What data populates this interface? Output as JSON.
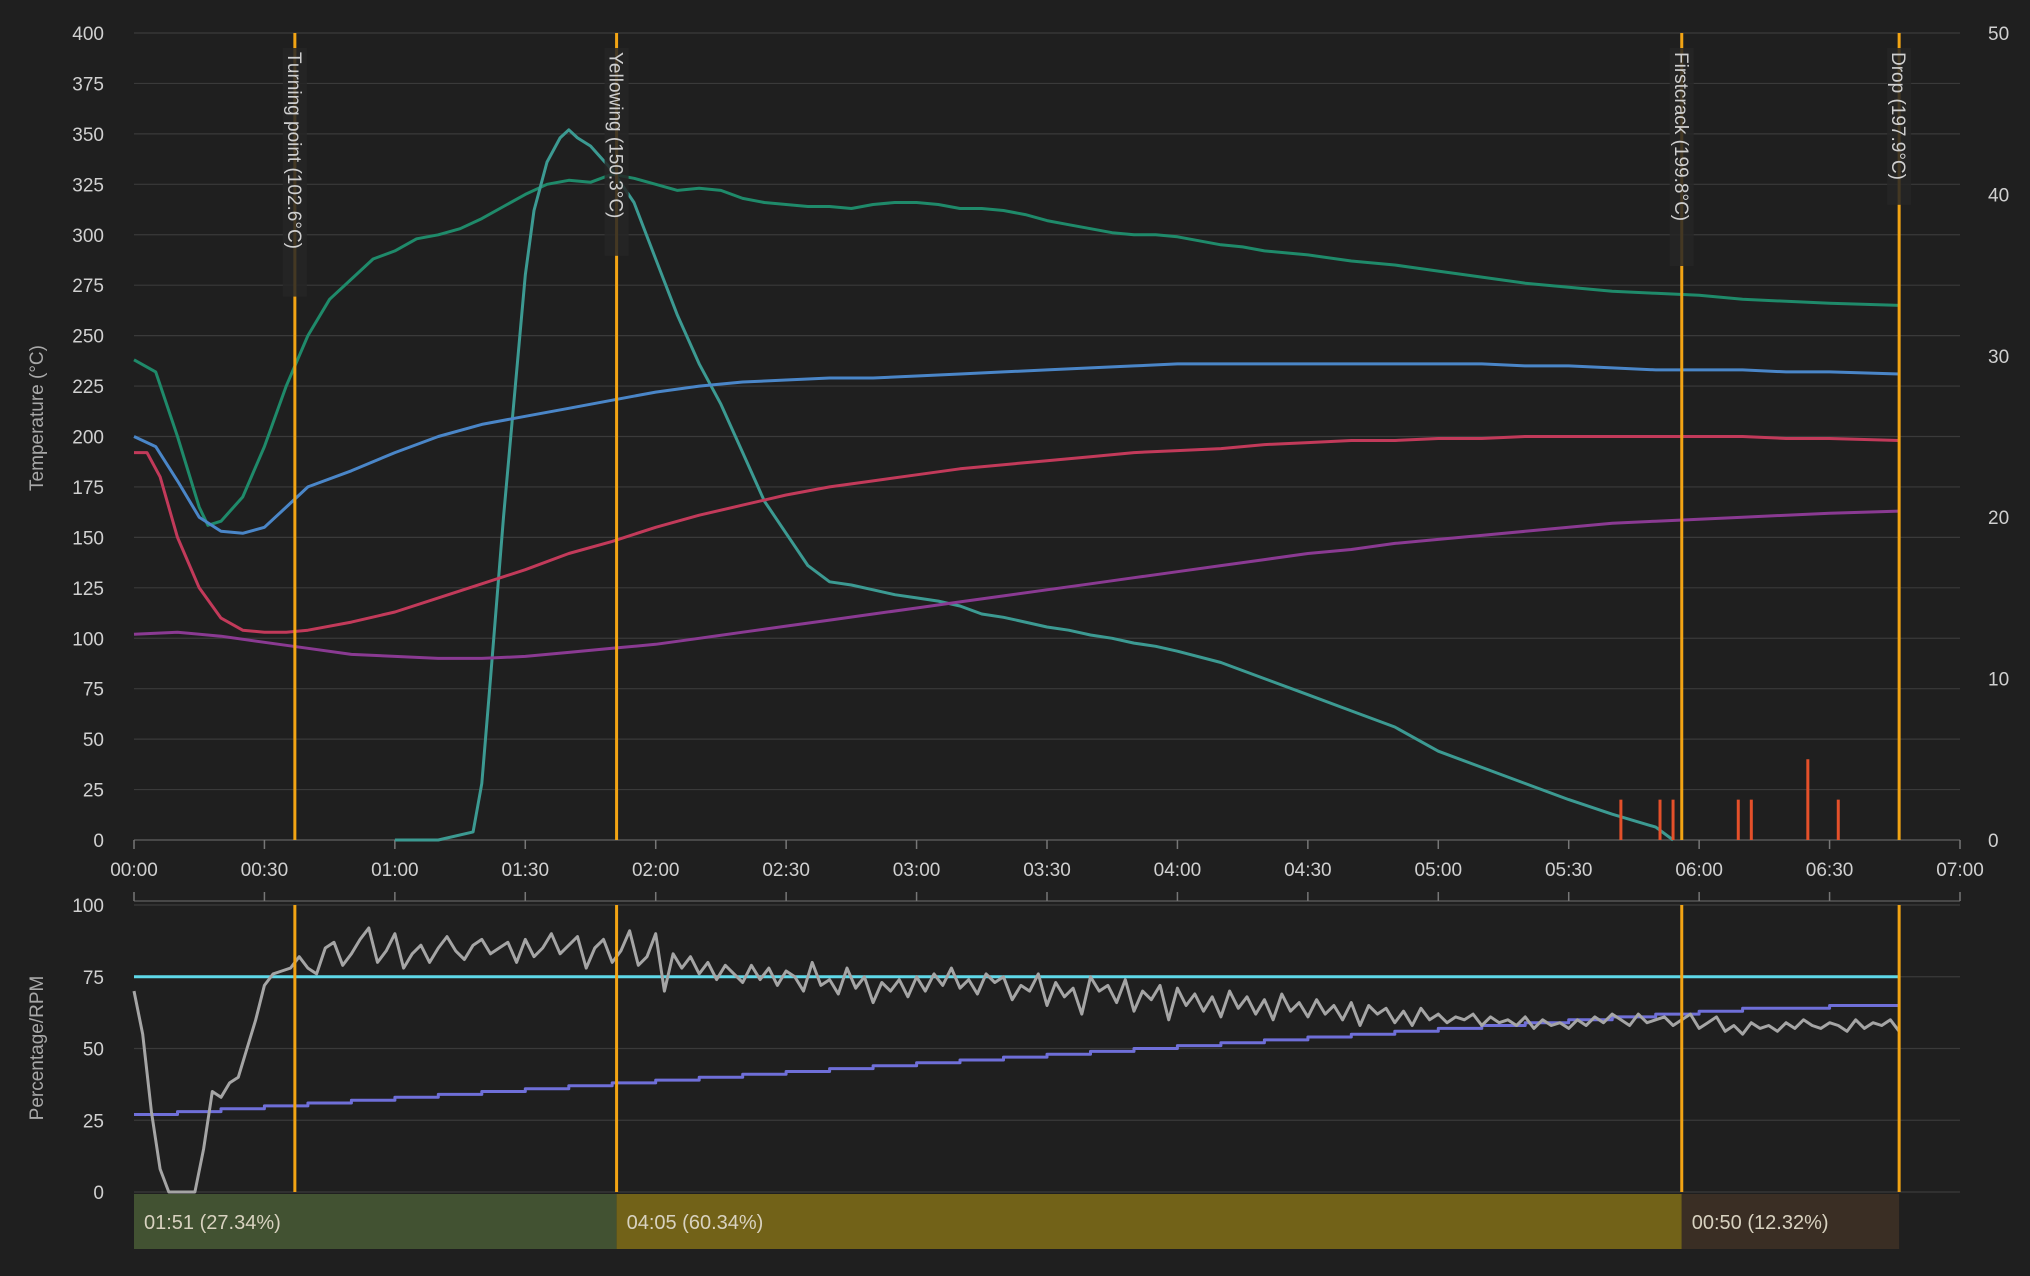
{
  "chart_data": {
    "type": "line",
    "x_ticks": [
      "00:00",
      "00:30",
      "01:00",
      "01:30",
      "02:00",
      "02:30",
      "03:00",
      "03:30",
      "04:00",
      "04:30",
      "05:00",
      "05:30",
      "06:00",
      "06:30",
      "07:00"
    ],
    "x_range_seconds": [
      0,
      420
    ],
    "top_panel": {
      "ylabel": "Temperature (°C)",
      "ylim": [
        0,
        400
      ],
      "y_ticks": [
        "0",
        "25",
        "50",
        "75",
        "100",
        "125",
        "150",
        "175",
        "200",
        "225",
        "250",
        "275",
        "300",
        "325",
        "350",
        "375",
        "400"
      ],
      "y2lim": [
        0,
        50
      ],
      "y2_ticks": [
        "0",
        "10",
        "20",
        "30",
        "40",
        "50"
      ],
      "grid": true,
      "series": [
        {
          "color": "#1f8a6a",
          "axis": "left",
          "x": [
            0,
            5,
            10,
            15,
            17,
            20,
            25,
            30,
            35,
            40,
            45,
            50,
            55,
            60,
            65,
            70,
            75,
            80,
            85,
            90,
            95,
            100,
            105,
            110,
            115,
            120,
            125,
            130,
            135,
            140,
            145,
            150,
            155,
            160,
            165,
            170,
            175,
            180,
            185,
            190,
            195,
            200,
            205,
            210,
            215,
            220,
            225,
            230,
            235,
            240,
            245,
            250,
            255,
            260,
            270,
            280,
            290,
            300,
            310,
            320,
            330,
            340,
            350,
            360,
            370,
            380,
            390,
            406
          ],
          "y": [
            238,
            232,
            200,
            165,
            156,
            158,
            170,
            195,
            225,
            250,
            268,
            278,
            288,
            292,
            298,
            300,
            303,
            308,
            314,
            320,
            325,
            327,
            326,
            330,
            328,
            325,
            322,
            323,
            322,
            318,
            316,
            315,
            314,
            314,
            313,
            315,
            316,
            316,
            315,
            313,
            313,
            312,
            310,
            307,
            305,
            303,
            301,
            300,
            300,
            299,
            297,
            295,
            294,
            292,
            290,
            287,
            285,
            282,
            279,
            276,
            274,
            272,
            271,
            270,
            268,
            267,
            266,
            265
          ]
        },
        {
          "color": "#3c9a92",
          "axis": "right",
          "x": [
            60,
            70,
            78,
            80,
            82,
            85,
            88,
            90,
            92,
            95,
            98,
            100,
            102,
            105,
            110,
            115,
            120,
            125,
            130,
            135,
            140,
            145,
            150,
            155,
            160,
            165,
            170,
            175,
            180,
            185,
            190,
            195,
            200,
            205,
            210,
            215,
            220,
            225,
            230,
            235,
            240,
            250,
            260,
            270,
            280,
            290,
            300,
            310,
            320,
            330,
            340,
            350,
            354
          ],
          "y": [
            0,
            0,
            0.5,
            3.5,
            10,
            20,
            29,
            35,
            39,
            42,
            43.5,
            44,
            43.5,
            43,
            41.5,
            39.5,
            36,
            32.5,
            29.5,
            27,
            24,
            21,
            19,
            17,
            16,
            15.8,
            15.5,
            15.2,
            15,
            14.8,
            14.5,
            14,
            13.8,
            13.5,
            13.2,
            13,
            12.7,
            12.5,
            12.2,
            12,
            11.7,
            11,
            10,
            9,
            8,
            7,
            5.5,
            4.5,
            3.5,
            2.5,
            1.6,
            0.8,
            0
          ]
        },
        {
          "color": "#4a86c8",
          "axis": "left",
          "x": [
            0,
            5,
            10,
            15,
            20,
            25,
            30,
            35,
            40,
            50,
            60,
            70,
            80,
            90,
            100,
            110,
            120,
            130,
            140,
            150,
            160,
            170,
            180,
            190,
            200,
            210,
            220,
            230,
            240,
            250,
            260,
            270,
            280,
            290,
            300,
            310,
            320,
            330,
            340,
            350,
            360,
            370,
            380,
            390,
            406
          ],
          "y": [
            200,
            195,
            178,
            160,
            153,
            152,
            155,
            165,
            175,
            183,
            192,
            200,
            206,
            210,
            214,
            218,
            222,
            225,
            227,
            228,
            229,
            229,
            230,
            231,
            232,
            233,
            234,
            235,
            236,
            236,
            236,
            236,
            236,
            236,
            236,
            236,
            235,
            235,
            234,
            233,
            233,
            233,
            232,
            232,
            231
          ]
        },
        {
          "color": "#c23a5a",
          "axis": "left",
          "x": [
            0,
            3,
            6,
            10,
            15,
            20,
            25,
            30,
            35,
            40,
            50,
            60,
            70,
            80,
            90,
            100,
            110,
            120,
            130,
            140,
            150,
            160,
            170,
            180,
            190,
            200,
            210,
            220,
            230,
            240,
            250,
            260,
            270,
            280,
            290,
            300,
            310,
            320,
            330,
            340,
            350,
            360,
            370,
            380,
            390,
            406
          ],
          "y": [
            192,
            192,
            180,
            150,
            125,
            110,
            104,
            103,
            103,
            104,
            108,
            113,
            120,
            127,
            134,
            142,
            148,
            155,
            161,
            166,
            171,
            175,
            178,
            181,
            184,
            186,
            188,
            190,
            192,
            193,
            194,
            196,
            197,
            198,
            198,
            199,
            199,
            200,
            200,
            200,
            200,
            200,
            200,
            199,
            199,
            198
          ]
        },
        {
          "color": "#8a3a92",
          "axis": "left",
          "x": [
            0,
            10,
            20,
            30,
            40,
            50,
            60,
            70,
            80,
            90,
            100,
            110,
            120,
            130,
            140,
            150,
            160,
            170,
            180,
            190,
            200,
            210,
            220,
            230,
            240,
            250,
            260,
            270,
            280,
            290,
            300,
            310,
            320,
            330,
            340,
            350,
            360,
            370,
            380,
            390,
            406
          ],
          "y": [
            102,
            103,
            101,
            98,
            95,
            92,
            91,
            90,
            90,
            91,
            93,
            95,
            97,
            100,
            103,
            106,
            109,
            112,
            115,
            118,
            121,
            124,
            127,
            130,
            133,
            136,
            139,
            142,
            144,
            147,
            149,
            151,
            153,
            155,
            157,
            158,
            159,
            160,
            161,
            162,
            163
          ]
        }
      ],
      "flame_markers": [
        {
          "x": 342,
          "v": 2.5
        },
        {
          "x": 351,
          "v": 2.5
        },
        {
          "x": 354,
          "v": 2.5
        },
        {
          "x": 369,
          "v": 2.5
        },
        {
          "x": 372,
          "v": 2.5
        },
        {
          "x": 385,
          "v": 5
        },
        {
          "x": 392,
          "v": 2.5
        }
      ]
    },
    "events": [
      {
        "x": 37,
        "label": "Turning point (102.6°C)"
      },
      {
        "x": 111,
        "label": "Yellowing (150.3°C)"
      },
      {
        "x": 356,
        "label": "Firstcrack (199.8°C)"
      },
      {
        "x": 406,
        "label": "Drop (197.9°C)"
      }
    ],
    "bottom_panel": {
      "ylabel": "Percentage/RPM",
      "ylim": [
        0,
        100
      ],
      "y_ticks": [
        "0",
        "25",
        "50",
        "75",
        "100"
      ],
      "series": [
        {
          "color": "#5fd8e8",
          "x": [
            0,
            406
          ],
          "y": [
            75,
            75
          ]
        },
        {
          "color": "#6f6fd8",
          "step": true,
          "x": [
            0,
            10,
            20,
            30,
            40,
            50,
            60,
            70,
            80,
            90,
            100,
            110,
            120,
            130,
            140,
            150,
            160,
            170,
            180,
            190,
            200,
            210,
            220,
            230,
            240,
            250,
            260,
            270,
            280,
            290,
            300,
            310,
            320,
            330,
            340,
            350,
            360,
            370,
            380,
            390,
            406
          ],
          "y": [
            27,
            28,
            29,
            30,
            31,
            32,
            33,
            34,
            35,
            36,
            37,
            38,
            39,
            40,
            41,
            42,
            43,
            44,
            45,
            46,
            47,
            48,
            49,
            50,
            51,
            52,
            53,
            54,
            55,
            56,
            57,
            58,
            59,
            60,
            61,
            62,
            63,
            64,
            64,
            65,
            65
          ]
        },
        {
          "color": "#a5a5a5",
          "x": [
            0,
            2,
            4,
            6,
            8,
            10,
            12,
            14,
            16,
            18,
            20,
            22,
            24,
            26,
            28,
            30,
            32,
            34,
            36,
            38,
            40,
            42,
            44,
            46,
            48,
            50,
            52,
            54,
            56,
            58,
            60,
            62,
            64,
            66,
            68,
            70,
            72,
            74,
            76,
            78,
            80,
            82,
            84,
            86,
            88,
            90,
            92,
            94,
            96,
            98,
            100,
            102,
            104,
            106,
            108,
            110,
            112,
            114,
            116,
            118,
            120,
            122,
            124,
            126,
            128,
            130,
            132,
            134,
            136,
            138,
            140,
            142,
            144,
            146,
            148,
            150,
            152,
            154,
            156,
            158,
            160,
            162,
            164,
            166,
            168,
            170,
            172,
            174,
            176,
            178,
            180,
            182,
            184,
            186,
            188,
            190,
            192,
            194,
            196,
            198,
            200,
            202,
            204,
            206,
            208,
            210,
            212,
            214,
            216,
            218,
            220,
            222,
            224,
            226,
            228,
            230,
            232,
            234,
            236,
            238,
            240,
            242,
            244,
            246,
            248,
            250,
            252,
            254,
            256,
            258,
            260,
            262,
            264,
            266,
            268,
            270,
            272,
            274,
            276,
            278,
            280,
            282,
            284,
            286,
            288,
            290,
            292,
            294,
            296,
            298,
            300,
            302,
            304,
            306,
            308,
            310,
            312,
            314,
            316,
            318,
            320,
            322,
            324,
            326,
            328,
            330,
            332,
            334,
            336,
            338,
            340,
            342,
            344,
            346,
            348,
            350,
            352,
            354,
            356,
            358,
            360,
            362,
            364,
            366,
            368,
            370,
            372,
            374,
            376,
            378,
            380,
            382,
            384,
            386,
            388,
            390,
            392,
            394,
            396,
            398,
            400,
            402,
            404,
            406
          ],
          "y": [
            70,
            55,
            28,
            8,
            0,
            0,
            0,
            0,
            15,
            35,
            33,
            38,
            40,
            50,
            60,
            72,
            76,
            77,
            78,
            82,
            78,
            76,
            85,
            87,
            79,
            83,
            88,
            92,
            80,
            84,
            90,
            78,
            83,
            86,
            80,
            85,
            89,
            84,
            81,
            86,
            88,
            83,
            85,
            87,
            80,
            88,
            82,
            85,
            90,
            83,
            86,
            89,
            78,
            85,
            88,
            80,
            84,
            91,
            79,
            82,
            90,
            70,
            83,
            78,
            82,
            76,
            80,
            74,
            79,
            76,
            73,
            79,
            74,
            78,
            72,
            77,
            75,
            70,
            80,
            72,
            74,
            69,
            78,
            71,
            75,
            66,
            73,
            70,
            74,
            68,
            75,
            70,
            76,
            72,
            78,
            71,
            74,
            69,
            76,
            73,
            75,
            67,
            72,
            70,
            76,
            65,
            73,
            68,
            71,
            62,
            75,
            70,
            72,
            66,
            74,
            63,
            70,
            67,
            72,
            60,
            71,
            65,
            69,
            63,
            68,
            61,
            70,
            64,
            68,
            62,
            67,
            60,
            69,
            63,
            66,
            61,
            67,
            62,
            65,
            60,
            66,
            58,
            65,
            62,
            64,
            59,
            63,
            58,
            64,
            60,
            62,
            59,
            61,
            60,
            62,
            58,
            61,
            59,
            60,
            58,
            61,
            57,
            60,
            58,
            59,
            57,
            60,
            58,
            61,
            59,
            62,
            60,
            58,
            62,
            59,
            60,
            61,
            58,
            60,
            62,
            57,
            59,
            61,
            56,
            58,
            55,
            59,
            57,
            58,
            56,
            59,
            57,
            60,
            58,
            57,
            59,
            58,
            56,
            60,
            57,
            59,
            58,
            60,
            56
          ]
        }
      ]
    },
    "phases": [
      {
        "label": "01:51 (27.34%)",
        "color": "#425232",
        "from": 0,
        "to": 111
      },
      {
        "label": "04:05 (60.34%)",
        "color": "#726218",
        "from": 111,
        "to": 356
      },
      {
        "label": "00:50 (12.32%)",
        "color": "#3a2e24",
        "from": 356,
        "to": 406
      }
    ]
  }
}
